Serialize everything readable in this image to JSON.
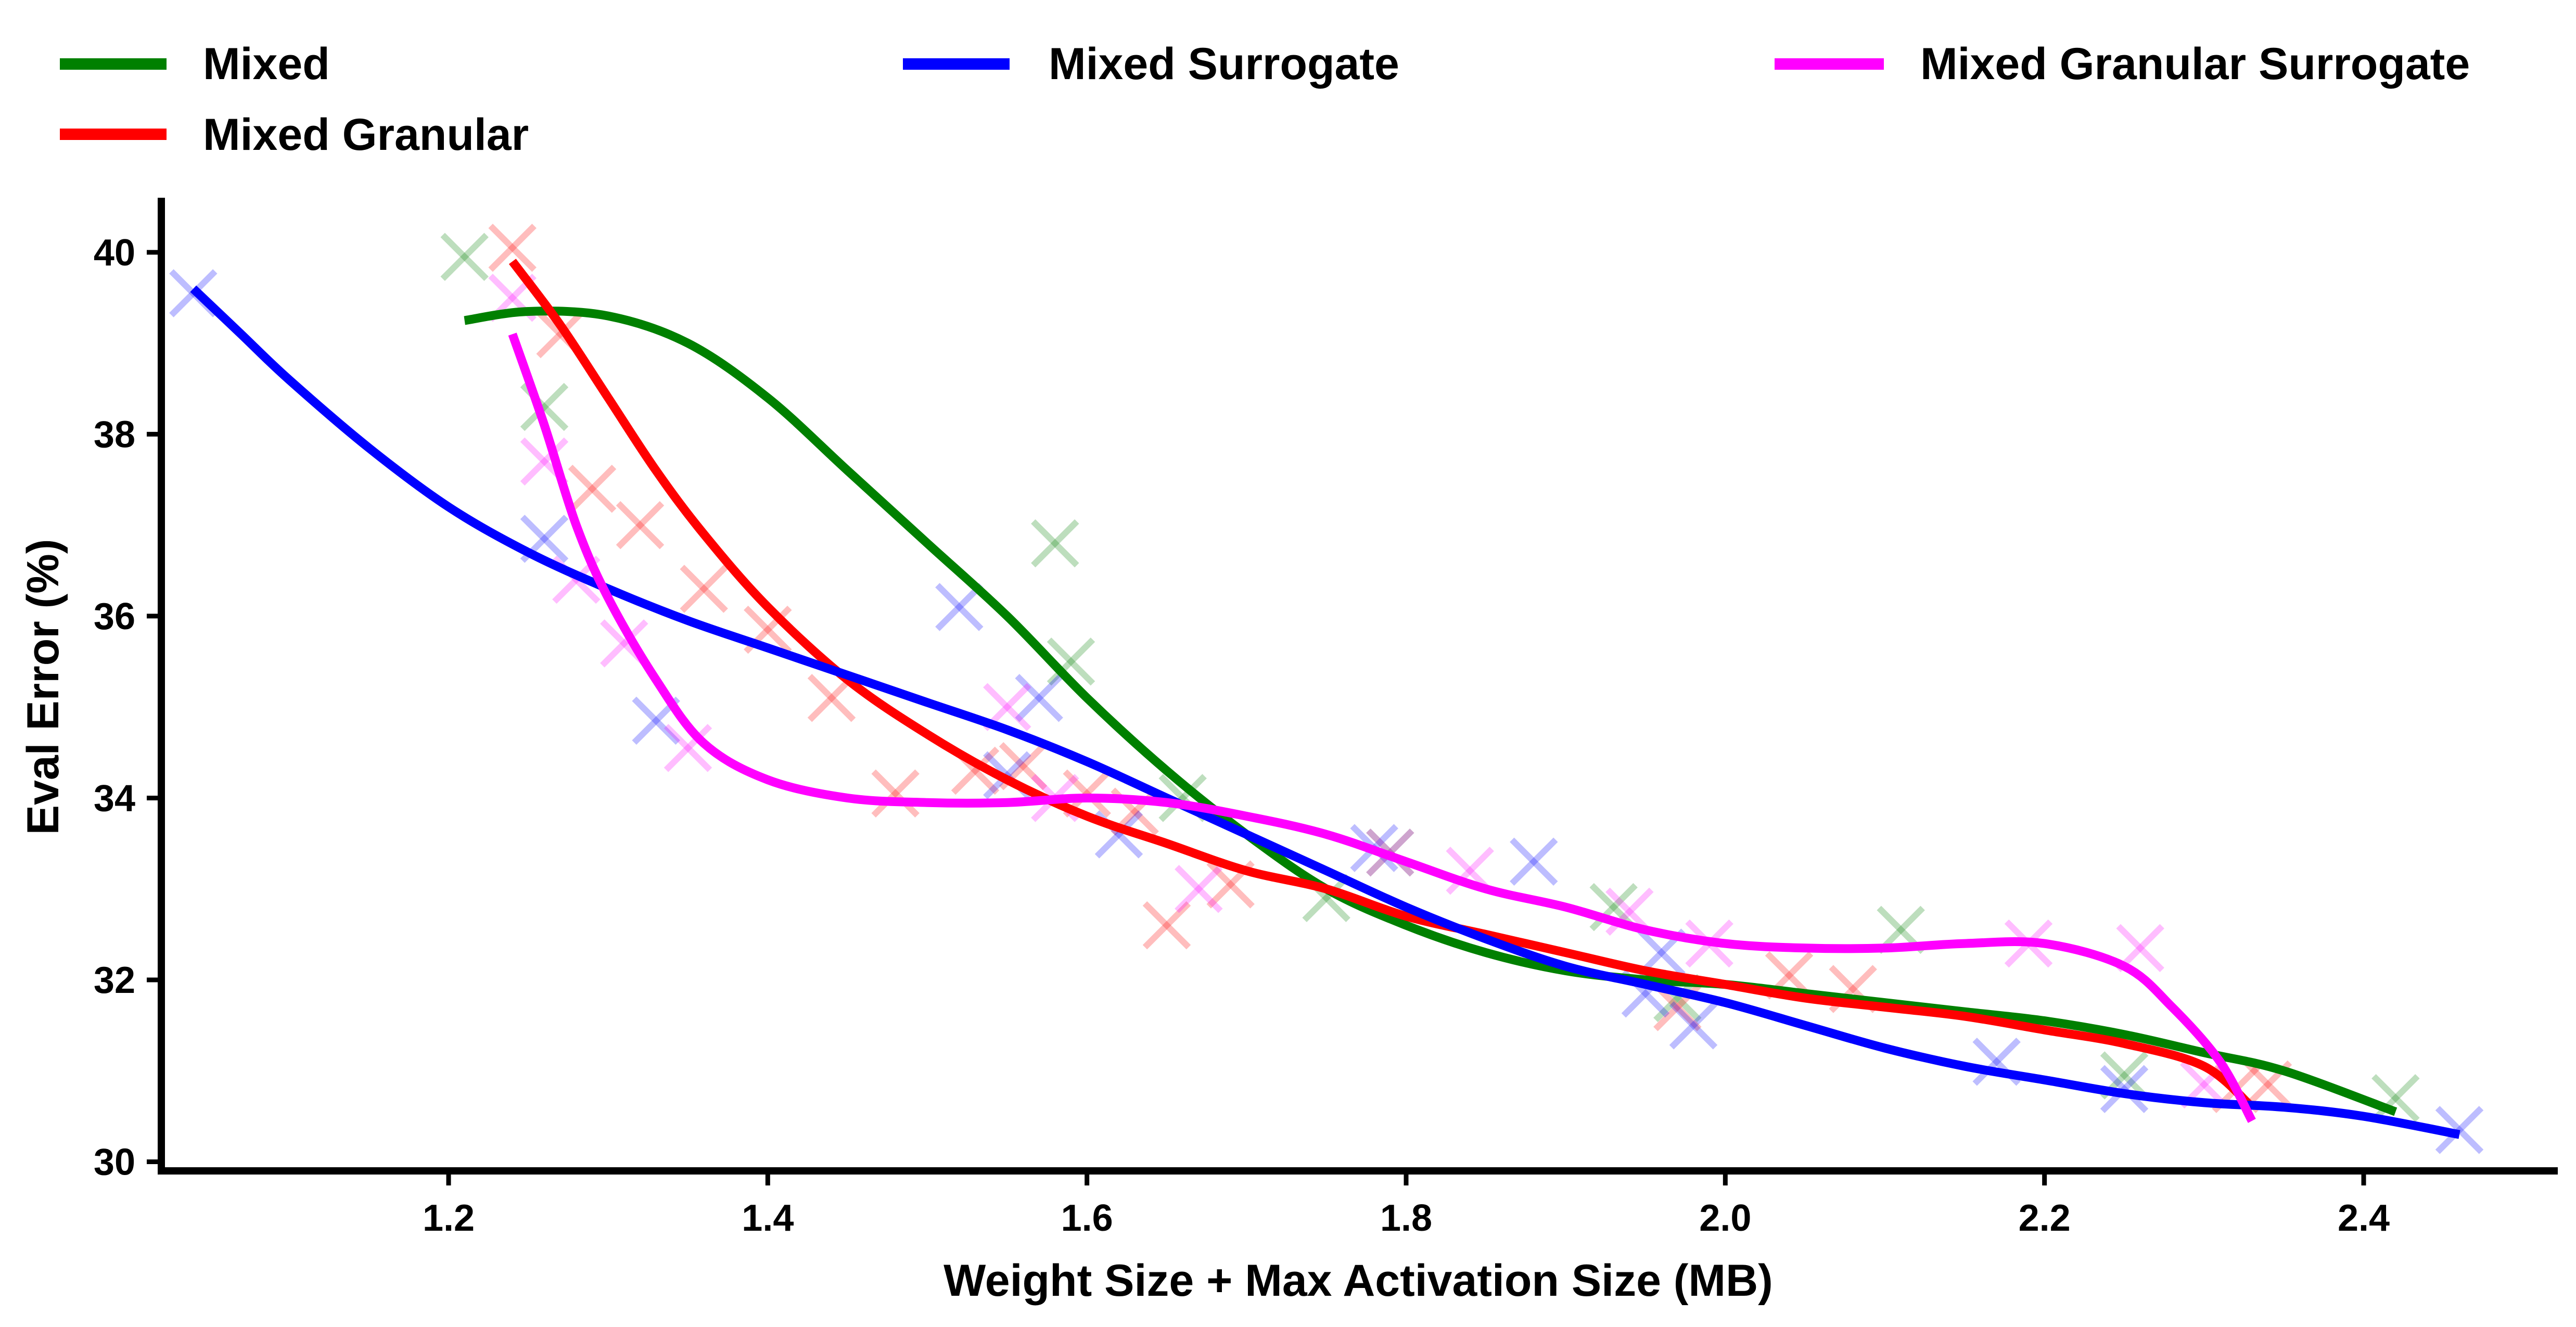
{
  "chart_data": {
    "type": "scatter",
    "title": "",
    "xlabel": "Weight Size + Max Activation Size (MB)",
    "ylabel": "Eval Error (%)",
    "xlim": [
      1.02,
      2.52
    ],
    "ylim": [
      29.9,
      40.6
    ],
    "xticks": [
      1.2,
      1.4,
      1.6,
      1.8,
      2.0,
      2.2,
      2.4
    ],
    "xtick_labels": [
      "1.2",
      "1.4",
      "1.6",
      "1.8",
      "2.0",
      "2.2",
      "2.4"
    ],
    "yticks": [
      30,
      32,
      34,
      36,
      38,
      40
    ],
    "ytick_labels": [
      "30",
      "32",
      "34",
      "36",
      "38",
      "40"
    ],
    "grid": false,
    "legend_position": "top",
    "marker": "x",
    "series": [
      {
        "name": "Mixed",
        "color": "#008000",
        "points": [
          [
            1.21,
            39.95
          ],
          [
            1.26,
            38.3
          ],
          [
            1.58,
            36.8
          ],
          [
            1.59,
            35.5
          ],
          [
            1.66,
            34.0
          ],
          [
            1.75,
            32.9
          ],
          [
            1.79,
            33.4
          ],
          [
            1.93,
            32.8
          ],
          [
            1.97,
            31.8
          ],
          [
            2.11,
            32.55
          ],
          [
            2.25,
            30.95
          ],
          [
            2.42,
            30.7
          ]
        ],
        "fit": [
          [
            1.21,
            39.25
          ],
          [
            1.25,
            39.35
          ],
          [
            1.3,
            39.3
          ],
          [
            1.35,
            39.0
          ],
          [
            1.4,
            38.4
          ],
          [
            1.45,
            37.6
          ],
          [
            1.5,
            36.8
          ],
          [
            1.55,
            36.0
          ],
          [
            1.6,
            35.1
          ],
          [
            1.65,
            34.3
          ],
          [
            1.7,
            33.6
          ],
          [
            1.75,
            33.0
          ],
          [
            1.8,
            32.6
          ],
          [
            1.85,
            32.3
          ],
          [
            1.9,
            32.1
          ],
          [
            1.95,
            32.0
          ],
          [
            2.0,
            31.95
          ],
          [
            2.05,
            31.85
          ],
          [
            2.1,
            31.75
          ],
          [
            2.15,
            31.65
          ],
          [
            2.2,
            31.55
          ],
          [
            2.25,
            31.4
          ],
          [
            2.3,
            31.2
          ],
          [
            2.35,
            31.0
          ],
          [
            2.42,
            30.55
          ]
        ]
      },
      {
        "name": "Mixed Granular",
        "color": "#ff0000",
        "points": [
          [
            1.24,
            40.05
          ],
          [
            1.27,
            39.1
          ],
          [
            1.29,
            37.4
          ],
          [
            1.32,
            37.0
          ],
          [
            1.36,
            36.3
          ],
          [
            1.4,
            35.85
          ],
          [
            1.44,
            35.1
          ],
          [
            1.48,
            34.05
          ],
          [
            1.53,
            34.3
          ],
          [
            1.56,
            34.35
          ],
          [
            1.6,
            34.05
          ],
          [
            1.63,
            33.85
          ],
          [
            1.65,
            32.6
          ],
          [
            1.69,
            33.05
          ],
          [
            1.97,
            31.7
          ],
          [
            2.04,
            32.05
          ],
          [
            2.08,
            31.9
          ],
          [
            2.32,
            30.8
          ],
          [
            2.34,
            30.85
          ]
        ],
        "fit": [
          [
            1.24,
            39.9
          ],
          [
            1.27,
            39.2
          ],
          [
            1.3,
            38.4
          ],
          [
            1.33,
            37.6
          ],
          [
            1.36,
            36.9
          ],
          [
            1.4,
            36.1
          ],
          [
            1.45,
            35.3
          ],
          [
            1.5,
            34.7
          ],
          [
            1.55,
            34.2
          ],
          [
            1.6,
            33.8
          ],
          [
            1.65,
            33.5
          ],
          [
            1.7,
            33.2
          ],
          [
            1.75,
            33.0
          ],
          [
            1.8,
            32.7
          ],
          [
            1.85,
            32.5
          ],
          [
            1.9,
            32.3
          ],
          [
            1.95,
            32.1
          ],
          [
            2.0,
            31.95
          ],
          [
            2.05,
            31.8
          ],
          [
            2.1,
            31.7
          ],
          [
            2.15,
            31.6
          ],
          [
            2.2,
            31.45
          ],
          [
            2.25,
            31.3
          ],
          [
            2.3,
            31.05
          ],
          [
            2.33,
            30.6
          ]
        ]
      },
      {
        "name": "Mixed Surrogate",
        "color": "#0000ff",
        "points": [
          [
            1.04,
            39.55
          ],
          [
            1.26,
            36.85
          ],
          [
            1.33,
            34.85
          ],
          [
            1.52,
            36.1
          ],
          [
            1.55,
            34.25
          ],
          [
            1.57,
            35.1
          ],
          [
            1.62,
            33.6
          ],
          [
            1.78,
            33.45
          ],
          [
            1.88,
            33.3
          ],
          [
            1.95,
            31.85
          ],
          [
            1.96,
            32.3
          ],
          [
            1.98,
            31.5
          ],
          [
            2.17,
            31.1
          ],
          [
            2.25,
            30.8
          ],
          [
            2.46,
            30.35
          ]
        ],
        "fit": [
          [
            1.04,
            39.6
          ],
          [
            1.07,
            39.1
          ],
          [
            1.1,
            38.6
          ],
          [
            1.15,
            37.85
          ],
          [
            1.2,
            37.2
          ],
          [
            1.25,
            36.7
          ],
          [
            1.3,
            36.3
          ],
          [
            1.35,
            35.95
          ],
          [
            1.4,
            35.65
          ],
          [
            1.45,
            35.35
          ],
          [
            1.5,
            35.05
          ],
          [
            1.55,
            34.75
          ],
          [
            1.6,
            34.4
          ],
          [
            1.65,
            34.0
          ],
          [
            1.7,
            33.6
          ],
          [
            1.75,
            33.2
          ],
          [
            1.8,
            32.8
          ],
          [
            1.85,
            32.45
          ],
          [
            1.9,
            32.15
          ],
          [
            1.95,
            31.95
          ],
          [
            2.0,
            31.75
          ],
          [
            2.05,
            31.5
          ],
          [
            2.1,
            31.25
          ],
          [
            2.15,
            31.05
          ],
          [
            2.2,
            30.9
          ],
          [
            2.25,
            30.75
          ],
          [
            2.3,
            30.65
          ],
          [
            2.35,
            30.6
          ],
          [
            2.4,
            30.5
          ],
          [
            2.46,
            30.3
          ]
        ]
      },
      {
        "name": "Mixed Granular Surrogate",
        "color": "#ff00ff",
        "points": [
          [
            1.24,
            39.5
          ],
          [
            1.26,
            37.7
          ],
          [
            1.28,
            36.4
          ],
          [
            1.31,
            35.7
          ],
          [
            1.35,
            34.55
          ],
          [
            1.55,
            35.0
          ],
          [
            1.58,
            34.0
          ],
          [
            1.67,
            33.0
          ],
          [
            1.79,
            33.4
          ],
          [
            1.84,
            33.2
          ],
          [
            1.94,
            32.75
          ],
          [
            1.99,
            32.4
          ],
          [
            2.19,
            32.4
          ],
          [
            2.26,
            32.35
          ],
          [
            2.3,
            30.85
          ]
        ],
        "fit": [
          [
            1.24,
            39.1
          ],
          [
            1.26,
            38.1
          ],
          [
            1.28,
            37.0
          ],
          [
            1.3,
            36.2
          ],
          [
            1.33,
            35.3
          ],
          [
            1.36,
            34.6
          ],
          [
            1.4,
            34.2
          ],
          [
            1.45,
            34.0
          ],
          [
            1.5,
            33.95
          ],
          [
            1.55,
            33.95
          ],
          [
            1.6,
            34.0
          ],
          [
            1.65,
            33.95
          ],
          [
            1.7,
            33.8
          ],
          [
            1.75,
            33.6
          ],
          [
            1.8,
            33.3
          ],
          [
            1.85,
            33.0
          ],
          [
            1.9,
            32.8
          ],
          [
            1.95,
            32.55
          ],
          [
            2.0,
            32.4
          ],
          [
            2.05,
            32.35
          ],
          [
            2.1,
            32.35
          ],
          [
            2.15,
            32.4
          ],
          [
            2.2,
            32.4
          ],
          [
            2.25,
            32.15
          ],
          [
            2.28,
            31.7
          ],
          [
            2.31,
            31.1
          ],
          [
            2.33,
            30.45
          ]
        ]
      }
    ]
  }
}
